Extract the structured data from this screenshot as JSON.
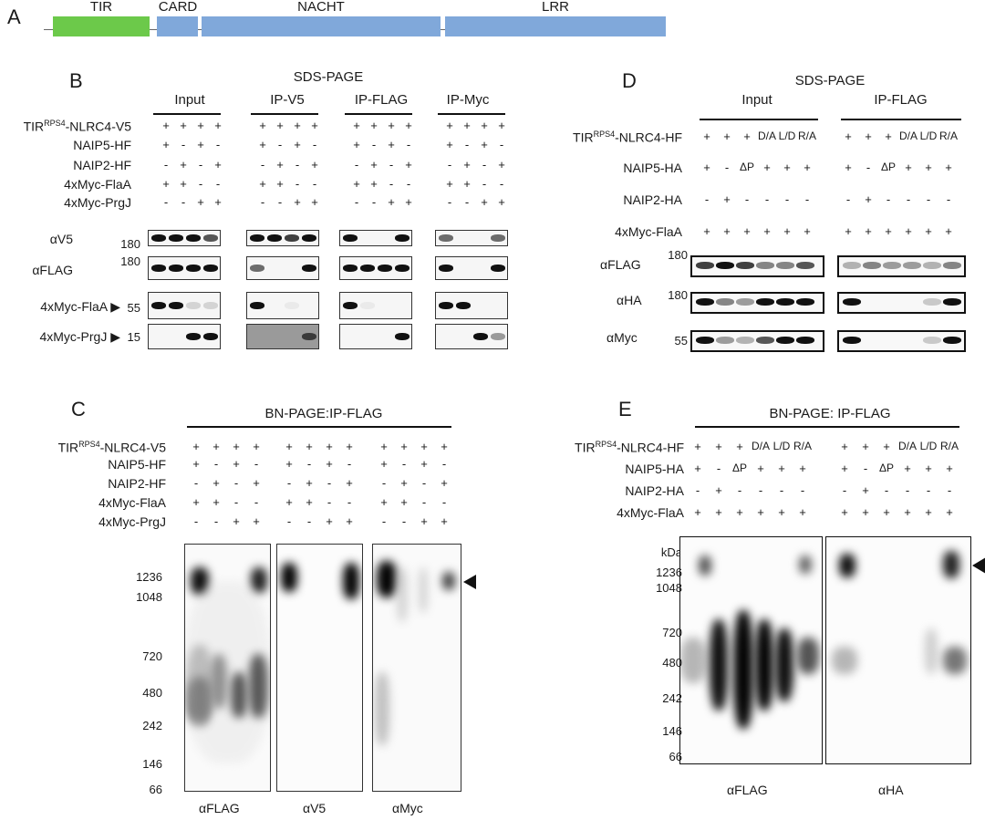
{
  "panel_a": {
    "letter": "A",
    "domains": [
      {
        "name": "TIR",
        "color": "#6cc94a"
      },
      {
        "name": "CARD",
        "color": "#80a8da"
      },
      {
        "name": "NACHT",
        "color": "#80a8da"
      },
      {
        "name": "LRR",
        "color": "#80a8da"
      }
    ]
  },
  "panel_b": {
    "letter": "B",
    "title": "SDS-PAGE",
    "groups": [
      "Input",
      "IP-V5",
      "IP-FLAG",
      "IP-Myc"
    ],
    "row_labels": [
      "TIR",
      "RPS4",
      "-NLRC4-V5",
      "NAIP5-HF",
      "NAIP2-HF",
      "4xMyc-FlaA",
      "4xMyc-PrgJ"
    ],
    "rows": [
      [
        "+",
        "+",
        "+",
        "+"
      ],
      [
        "+",
        "-",
        "+",
        "-"
      ],
      [
        "-",
        "+",
        "-",
        "+"
      ],
      [
        "+",
        "+",
        "-",
        "-"
      ],
      [
        "-",
        "-",
        "+",
        "+"
      ]
    ],
    "blots": [
      {
        "antibody": "αV5",
        "mw": "180"
      },
      {
        "antibody": "αFLAG",
        "mw": "180"
      },
      {
        "antibody": "4xMyc-FlaA ▶",
        "mw": "55"
      },
      {
        "antibody": "4xMyc-PrgJ ▶",
        "mw": "15"
      }
    ]
  },
  "panel_c": {
    "letter": "C",
    "title": "BN-PAGE:IP-FLAG",
    "row_labels": [
      "NAIP5-HF",
      "NAIP2-HF",
      "4xMyc-FlaA",
      "4xMyc-PrgJ"
    ],
    "mw_ladder": [
      "1236",
      "1048",
      "720",
      "480",
      "242",
      "146",
      "66"
    ],
    "antibodies": [
      "αFLAG",
      "αV5",
      "αMyc"
    ]
  },
  "panel_d": {
    "letter": "D",
    "title": "SDS-PAGE",
    "groups": [
      "Input",
      "IP-FLAG"
    ],
    "row_labels": [
      "-NLRC4-HF",
      "NAIP5-HA",
      "NAIP2-HA",
      "4xMyc-FlaA"
    ],
    "rows": [
      [
        "+",
        "+",
        "+",
        "D/A",
        "L/D",
        "R/A"
      ],
      [
        "+",
        "-",
        "ΔP",
        "+",
        "+",
        "+"
      ],
      [
        "-",
        "+",
        "-",
        "-",
        "-",
        "-"
      ],
      [
        "+",
        "+",
        "+",
        "+",
        "+",
        "+"
      ]
    ],
    "blots": [
      {
        "antibody": "αFLAG",
        "mw": "180"
      },
      {
        "antibody": "αHA",
        "mw": "180"
      },
      {
        "antibody": "αMyc",
        "mw": "55"
      }
    ]
  },
  "panel_e": {
    "letter": "E",
    "title": "BN-PAGE: IP-FLAG",
    "mw_unit": "kDa",
    "mw_ladder": [
      "1236",
      "1048",
      "720",
      "480",
      "242",
      "146",
      "66"
    ],
    "antibodies": [
      "αFLAG",
      "αHA"
    ]
  }
}
